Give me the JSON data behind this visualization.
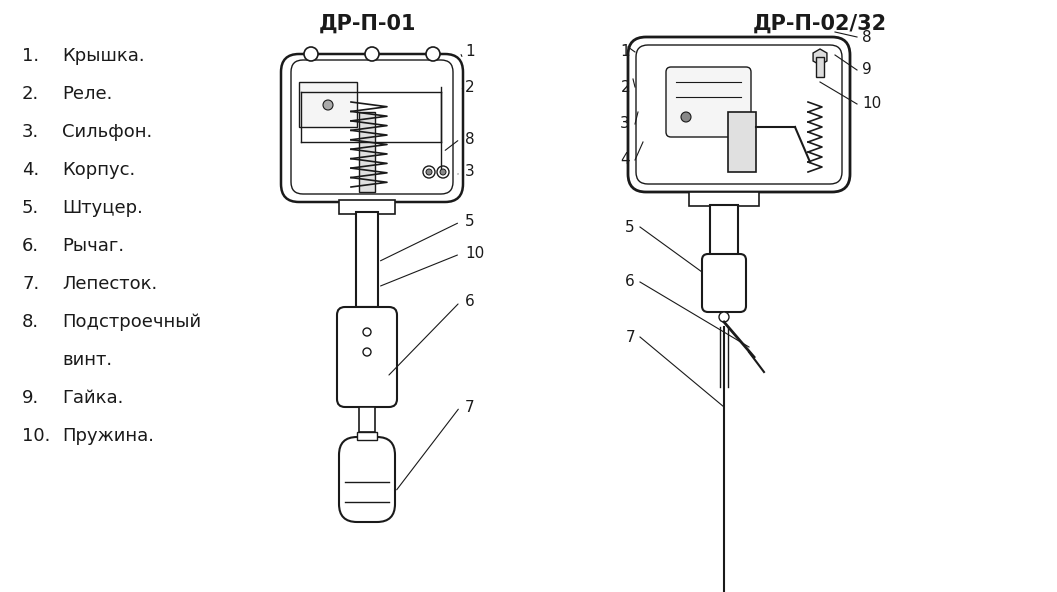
{
  "title_left": "ДР-П-01",
  "title_right": "ДР-П-02/32",
  "bg_color": "#ffffff",
  "text_color": "#1a1a1a",
  "line_color": "#1a1a1a",
  "title_fontsize": 15,
  "legend_fontsize": 13,
  "legend_lines": [
    [
      "1.",
      "Крышка."
    ],
    [
      "2.",
      "Реле."
    ],
    [
      "3.",
      "Сильфон."
    ],
    [
      "4.",
      "Корпус."
    ],
    [
      "5.",
      "Штуцер."
    ],
    [
      "6.",
      "Рычаг."
    ],
    [
      "7.",
      "Лепесток."
    ],
    [
      "8.",
      "Подстроечный"
    ],
    [
      "",
      "винт."
    ],
    [
      "9.",
      "Гайка."
    ],
    [
      "10.",
      "Пружина."
    ]
  ]
}
